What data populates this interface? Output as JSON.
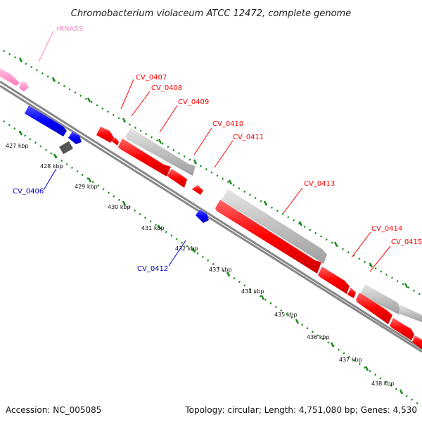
{
  "title": "Chromobacterium violaceum ATCC 12472, complete genome",
  "footer": {
    "accession": "Accession: NC_005085",
    "topology": "Topology: circular; Length: 4,751,080 bp; Genes: 4,530"
  },
  "ruler": {
    "ticks": [
      "427 kbp",
      "428 kbp",
      "429 kbp",
      "430 kbp",
      "431 kbp",
      "432 kbp",
      "433 kbp",
      "434 kbp",
      "435 kbp",
      "436 kbp",
      "437 kbp",
      "438 kbp"
    ]
  },
  "labels": {
    "rRNA5S": "rRNA5S",
    "cv0406": "CV_0406",
    "cv0407": "CV_0407",
    "cv0408": "CV_0408",
    "cv0409": "CV_0409",
    "cv0410": "CV_0410",
    "cv0411": "CV_0411",
    "cv0412": "CV_0412",
    "cv0413": "CV_0413",
    "cv0414": "CV_0414",
    "cv0415": "CV_0415"
  },
  "colors": {
    "forward_cds": "#ff0000",
    "reverse_cds": "#0000ff",
    "rrna": "#ff88cc",
    "orf_grey": "#bbbbbb",
    "pseudo": "#555555",
    "backbone": "#888888",
    "ruler_dots": "#1a8a1a",
    "label_red": "#ff0000",
    "label_blue": "#0000cc",
    "label_pink": "#ff88cc"
  }
}
